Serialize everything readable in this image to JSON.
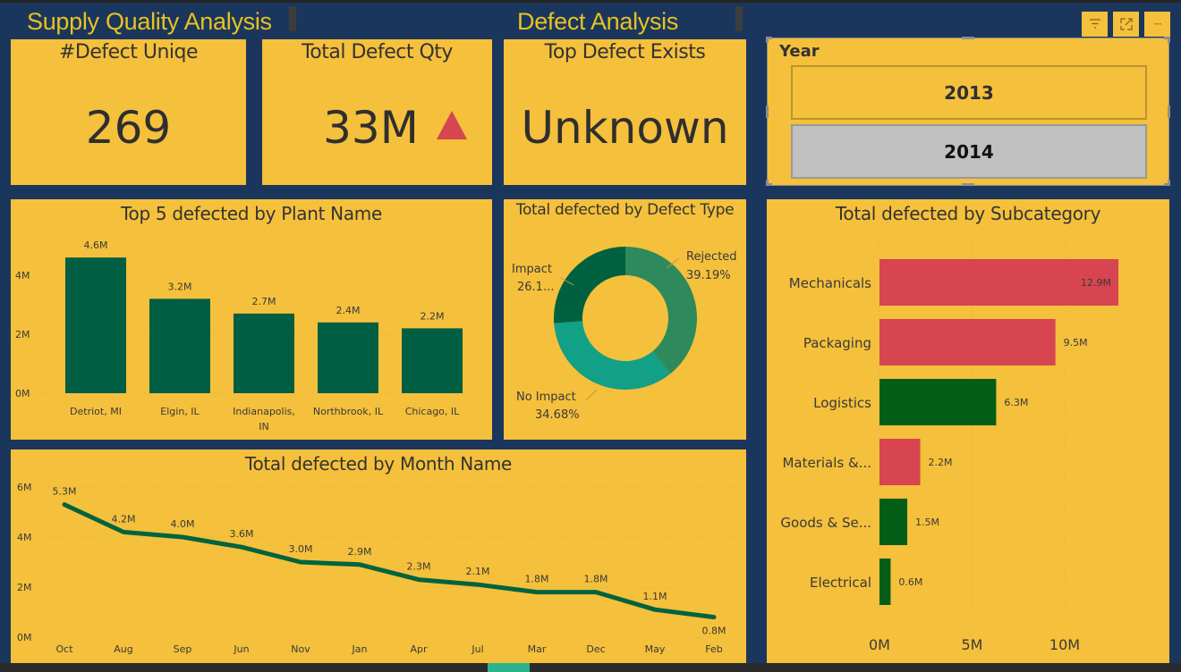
{
  "header": {
    "title_left": "Supply Quality Analysis",
    "title_right": "Defect Analysis",
    "visual_header_buttons": [
      {
        "name": "filter",
        "icon": "filter-icon"
      },
      {
        "name": "focus-mode",
        "icon": "focus-mode-icon"
      },
      {
        "name": "more-options",
        "icon": "more-options-icon",
        "glyph": "···"
      }
    ]
  },
  "kpis": [
    {
      "title": "#Defect Uniqe",
      "value": "269"
    },
    {
      "title": "Total Defect Qty",
      "value": "33M",
      "indicator": "up-triangle",
      "indicator_color": "#d64550"
    },
    {
      "title": "Top Defect Exists",
      "value": "Unknown"
    }
  ],
  "slicer": {
    "label": "Year",
    "options": [
      {
        "label": "2013",
        "selected": false
      },
      {
        "label": "2014",
        "selected": true
      }
    ]
  },
  "colors": {
    "background": "#1b365d",
    "card": "#f5c03b",
    "title": "#e8c21e",
    "bar_green": "#005e43",
    "line_green": "#00633f",
    "sub_red": "#d64550",
    "sub_green": "#025e16",
    "donut": [
      "#2e8a5c",
      "#12a086",
      "#006140"
    ]
  },
  "chart_data": [
    {
      "id": "plant",
      "type": "bar",
      "title": "Top 5 defected by Plant Name",
      "categories": [
        "Detriot, MI",
        "Elgin, IL",
        "Indianapolis, IN",
        "Northbrook, IL",
        "Chicago, IL"
      ],
      "category_lines": [
        [
          "Detriot, MI"
        ],
        [
          "Elgin, IL"
        ],
        [
          "Indianapolis,",
          "IN"
        ],
        [
          "Northbrook, IL"
        ],
        [
          "Chicago, IL"
        ]
      ],
      "values": [
        4.6,
        3.2,
        2.7,
        2.4,
        2.2
      ],
      "data_labels": [
        "4.6M",
        "3.2M",
        "2.7M",
        "2.4M",
        "2.2M"
      ],
      "yticks": [
        "0M",
        "2M",
        "4M"
      ],
      "ytick_values": [
        0,
        2,
        4
      ],
      "ylim": [
        0,
        4.6
      ],
      "unit": "M",
      "grid": true
    },
    {
      "id": "defect_type",
      "type": "pie",
      "donut": true,
      "title": "Total defected by Defect Type",
      "slices": [
        {
          "label": "Rejected",
          "percent": 39.19,
          "display": "39.19%"
        },
        {
          "label": "No Impact",
          "percent": 34.68,
          "display": "34.68%"
        },
        {
          "label": "Impact",
          "percent": 26.13,
          "display": "26.1..."
        }
      ]
    },
    {
      "id": "month",
      "type": "line",
      "title": "Total defected by Month Name",
      "x": [
        "Oct",
        "Aug",
        "Sep",
        "Jun",
        "Nov",
        "Jan",
        "Apr",
        "Jul",
        "Mar",
        "Dec",
        "May",
        "Feb"
      ],
      "values": [
        5.3,
        4.2,
        4.0,
        3.6,
        3.0,
        2.9,
        2.3,
        2.1,
        1.8,
        1.8,
        1.1,
        0.8
      ],
      "data_labels": [
        "5.3M",
        "4.2M",
        "4.0M",
        "3.6M",
        "3.0M",
        "2.9M",
        "2.3M",
        "2.1M",
        "1.8M",
        "1.8M",
        "1.1M",
        "0.8M"
      ],
      "yticks": [
        "0M",
        "2M",
        "4M",
        "6M"
      ],
      "ytick_values": [
        0,
        2,
        4,
        6
      ],
      "ylim": [
        0,
        6
      ],
      "grid": true
    },
    {
      "id": "subcategory",
      "type": "bar",
      "orientation": "horizontal",
      "title": "Total defected by Subcategory",
      "categories": [
        "Mechanicals",
        "Packaging",
        "Logistics",
        "Materials &...",
        "Goods & Se...",
        "Electrical"
      ],
      "values": [
        12.9,
        9.5,
        6.3,
        2.2,
        1.5,
        0.6
      ],
      "data_labels": [
        "12.9M",
        "9.5M",
        "6.3M",
        "2.2M",
        "1.5M",
        "0.6M"
      ],
      "bar_status": [
        "red",
        "red",
        "green",
        "red",
        "green",
        "green"
      ],
      "xticks": [
        "0M",
        "5M",
        "10M"
      ],
      "xtick_values": [
        0,
        5,
        10
      ],
      "xlim": [
        0,
        15
      ],
      "grid": true
    }
  ]
}
